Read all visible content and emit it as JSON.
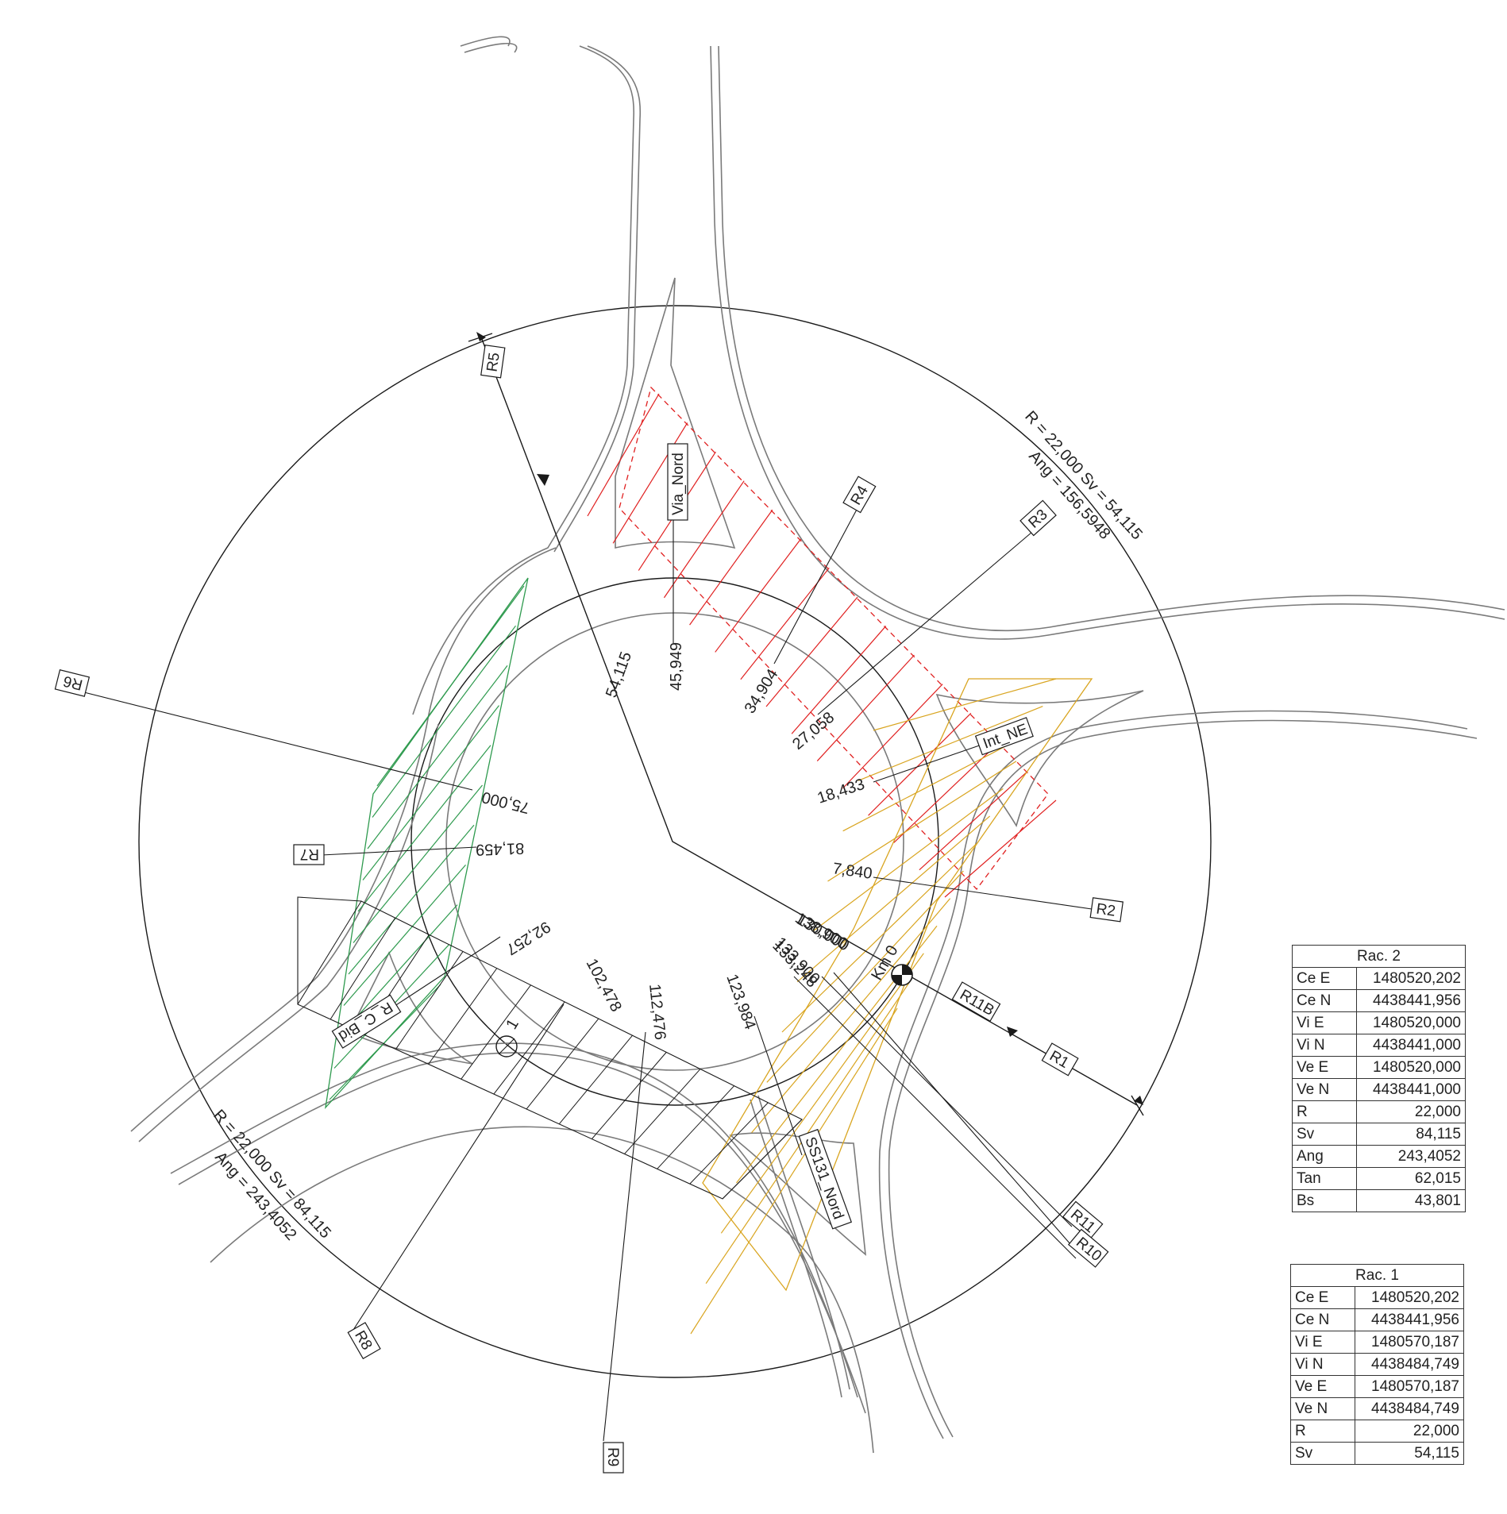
{
  "stations": {
    "via_nord": "45,949",
    "r4": "34,904",
    "r3": "27,058",
    "int_ne": "18,433",
    "r2": "7,840",
    "overlap_a": "138,900",
    "overlap_b": "130,000",
    "overlap_c": "133,248",
    "overlap_d": "133,900",
    "ss131": "123,984",
    "r9": "112,476",
    "r8": "102,478",
    "r_c_bid": "92,257",
    "r7": "81,459",
    "r6": "75,000",
    "r5": "54,115"
  },
  "tags": {
    "r1": "R1",
    "r2": "R2",
    "r3": "R3",
    "r4": "R4",
    "r5": "R5",
    "r6": "R6",
    "r7": "R7",
    "r8": "R8",
    "r9": "R9",
    "r10": "R10",
    "r11": "R11",
    "r11b": "R11B",
    "via_nord": "Via_Nord",
    "int_ne": "Int_NE",
    "ss131": "SS131_Nord",
    "r_c_bid": "R_C_Bid"
  },
  "arc_labels": {
    "ne_line1": "R = 22,000  Sv = 54,115",
    "ne_line2": "Ang = 156,5948",
    "sw_line1": "R = 22,000  Sv = 84,115",
    "sw_line2": "Ang = 243,4052"
  },
  "km_label": "Km 0",
  "point_one": "1",
  "tables": [
    {
      "title": "Rac. 2",
      "rows": [
        {
          "k": "Ce  E",
          "v": "1480520,202"
        },
        {
          "k": "Ce  N",
          "v": "4438441,956"
        },
        {
          "k": "Vi  E",
          "v": "1480520,000"
        },
        {
          "k": "Vi  N",
          "v": "4438441,000"
        },
        {
          "k": "Ve  E",
          "v": "1480520,000"
        },
        {
          "k": "Ve  N",
          "v": "4438441,000"
        },
        {
          "k": "R",
          "v": "22,000"
        },
        {
          "k": "Sv",
          "v": "84,115"
        },
        {
          "k": "Ang",
          "v": "243,4052"
        },
        {
          "k": "Tan",
          "v": "62,015"
        },
        {
          "k": "Bs",
          "v": "43,801"
        }
      ]
    },
    {
      "title": "Rac. 1",
      "rows": [
        {
          "k": "Ce  E",
          "v": "1480520,202"
        },
        {
          "k": "Ce  N",
          "v": "4438441,956"
        },
        {
          "k": "Vi  E",
          "v": "1480570,187"
        },
        {
          "k": "Vi  N",
          "v": "4438484,749"
        },
        {
          "k": "Ve  E",
          "v": "1480570,187"
        },
        {
          "k": "Ve  N",
          "v": "4438484,749"
        },
        {
          "k": "R",
          "v": "22,000"
        },
        {
          "k": "Sv",
          "v": "54,115"
        }
      ]
    }
  ],
  "colors": {
    "line": "#1a1a1a",
    "road": "#7a7a7a",
    "red_hatch": "#e02020",
    "green_hatch": "#2e9a4e",
    "orange_hatch": "#d9a520"
  }
}
